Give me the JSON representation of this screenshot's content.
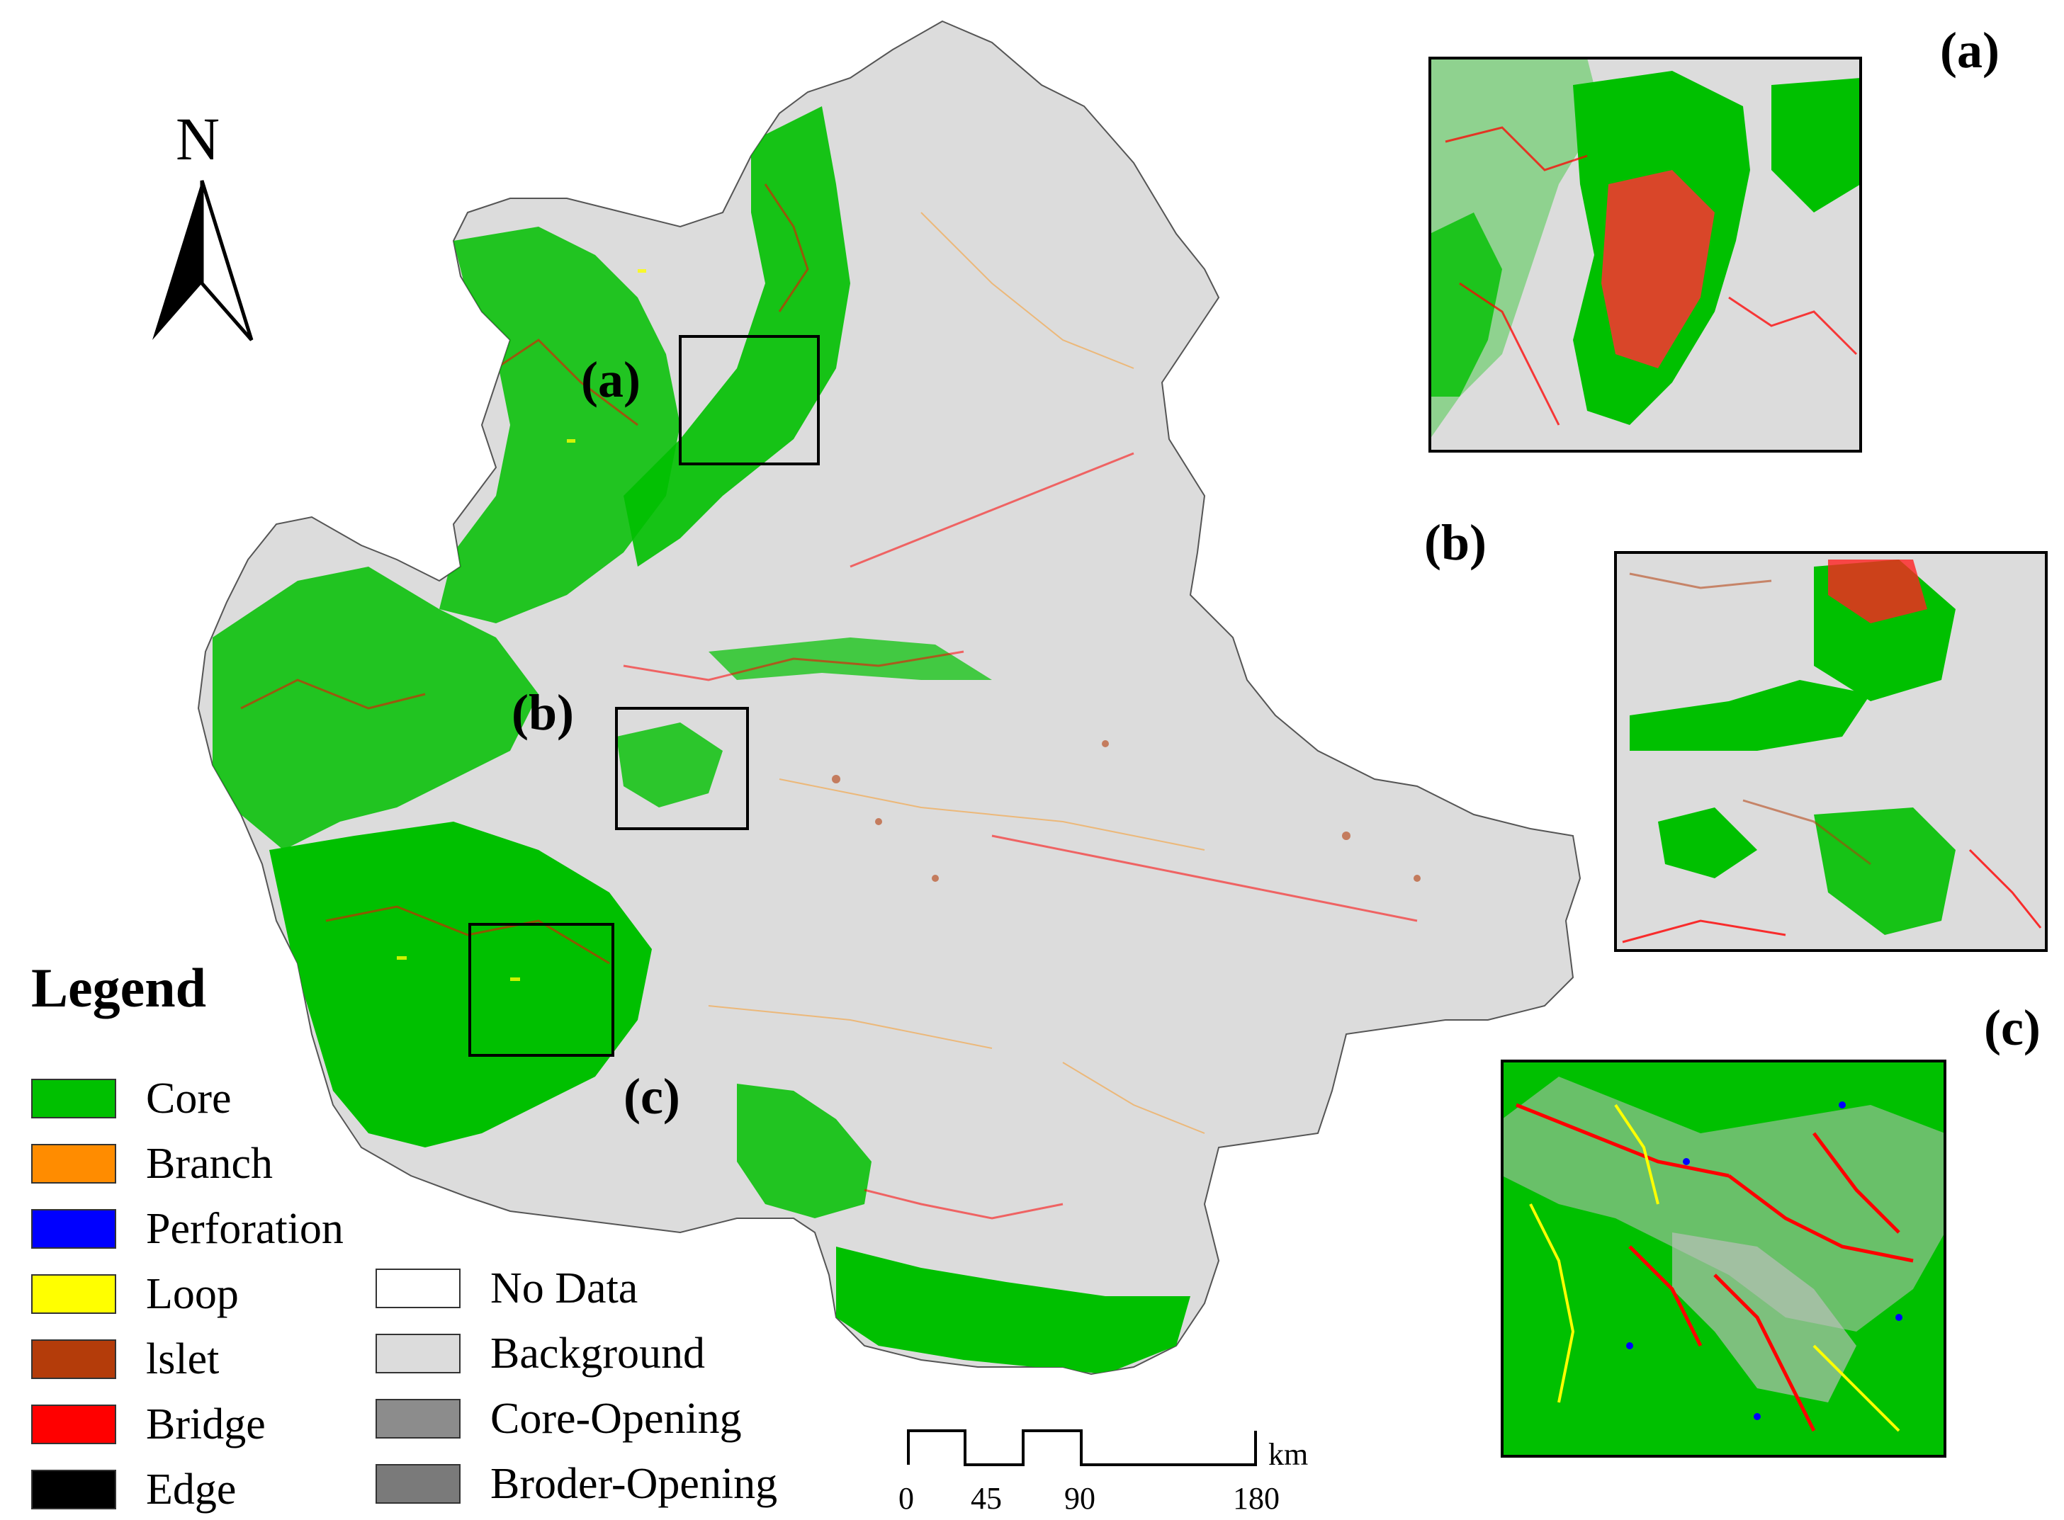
{
  "north_arrow": {
    "label": "N"
  },
  "map_labels": [
    "(a)",
    "(b)",
    "(c)"
  ],
  "insets": [
    {
      "id": "a",
      "label": "(a)"
    },
    {
      "id": "b",
      "label": "(b)"
    },
    {
      "id": "c",
      "label": "(c)"
    }
  ],
  "legend": {
    "title": "Legend",
    "items": [
      {
        "label": "Core",
        "color": "#00c000"
      },
      {
        "label": "Branch",
        "color": "#ff8c00"
      },
      {
        "label": "Perforation",
        "color": "#0000ff"
      },
      {
        "label": "Loop",
        "color": "#ffff00"
      },
      {
        "label": "lslet",
        "color": "#b43c0a"
      },
      {
        "label": "Bridge",
        "color": "#ff0000"
      },
      {
        "label": "Edge",
        "color": "#000000"
      },
      {
        "label": "No Data",
        "color": "#ffffff"
      },
      {
        "label": "Background",
        "color": "#dcdcdc"
      },
      {
        "label": "Core-Opening",
        "color": "#8c8c8c"
      },
      {
        "label": "Broder-Opening",
        "color": "#7a7a7a"
      }
    ]
  },
  "scale_bar": {
    "unit": "km",
    "ticks": [
      "0",
      "45",
      "90",
      "180"
    ]
  }
}
